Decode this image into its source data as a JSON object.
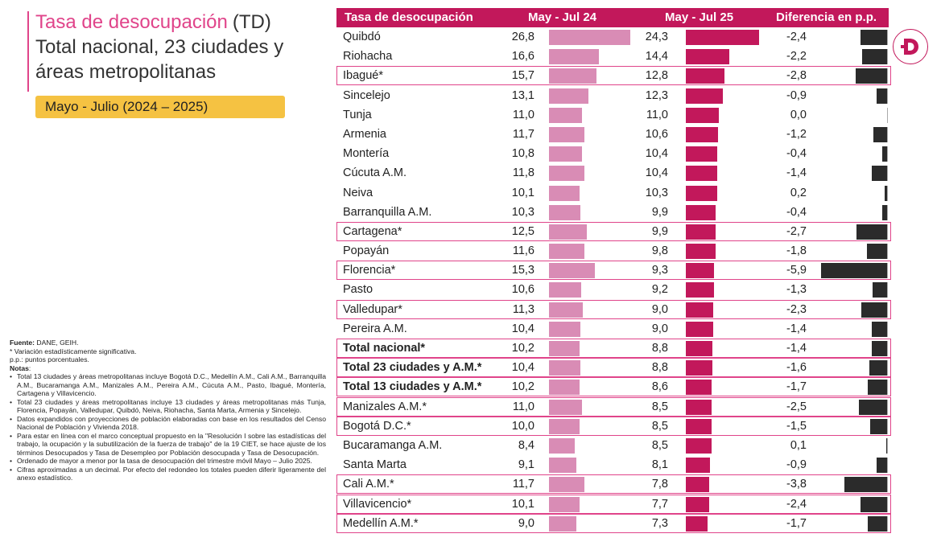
{
  "title": {
    "main": "Tasa de desocupación",
    "abbr": "(TD)",
    "line2": "Total nacional, 23 ciudades y áreas metropolitanas"
  },
  "period": "Mayo - Julio (2024 – 2025)",
  "colors": {
    "accent": "#e0448a",
    "header": "#c2185b",
    "bar2024": "#d98cb5",
    "bar2025": "#c2185b",
    "bardiff": "#2b2b2b",
    "period_bg": "#f5c242"
  },
  "notes": {
    "fuente_label": "Fuente:",
    "fuente": " DANE, GEIH.",
    "line1": "* Variación estadísticamente significativa.",
    "line2": "p.p.: puntos porcentuales.",
    "notas_label": "Notas",
    "notas_colon": ":",
    "items": [
      "Total 13 ciudades y áreas metropolitanas incluye Bogotá D.C., Medellín A.M., Cali A.M., Barranquilla A.M., Bucaramanga A.M., Manizales A.M., Pereira A.M., Cúcuta A.M., Pasto, Ibagué, Montería, Cartagena y Villavicencio.",
      "Total 23 ciudades y áreas metropolitanas incluye 13 ciudades y áreas metropolitanas más Tunja, Florencia, Popayán, Valledupar, Quibdó, Neiva, Riohacha, Santa Marta, Armenia y Sincelejo.",
      "Datos expandidos con proyecciones de población elaboradas con base en los resultados del Censo Nacional de Población y Vivienda 2018.",
      "Para estar en línea con el marco conceptual propuesto en la \"Resolución I sobre las estadísticas del trabajo, la ocupación y la subutilización de la fuerza de trabajo\" de la 19 CIET, se hace ajuste de los términos Desocupados y Tasa de Desempleo por Población desocupada y Tasa de Desocupación.",
      "Ordenado de mayor a menor por la tasa de desocupación del trimestre móvil Mayo – Julio 2025.",
      "Cifras aproximadas a un decimal. Por efecto del redondeo los totales pueden diferir ligeramente del anexo estadístico."
    ]
  },
  "chart_data": {
    "type": "table",
    "columns": [
      "Tasa de desocupación",
      "May - Jul 24",
      "May - Jul 25",
      "Diferencia en p.p."
    ],
    "rows": [
      {
        "name": "Quibdó",
        "v2024": "26,8",
        "v2025": "24,3",
        "diff": "-2,4",
        "n2024": 26.8,
        "n2025": 24.3,
        "nd": -2.4,
        "bold": false,
        "highlight": false
      },
      {
        "name": "Riohacha",
        "v2024": "16,6",
        "v2025": "14,4",
        "diff": "-2,2",
        "n2024": 16.6,
        "n2025": 14.4,
        "nd": -2.2,
        "bold": false,
        "highlight": false
      },
      {
        "name": "Ibagué*",
        "v2024": "15,7",
        "v2025": "12,8",
        "diff": "-2,8",
        "n2024": 15.7,
        "n2025": 12.8,
        "nd": -2.8,
        "bold": false,
        "highlight": true
      },
      {
        "name": "Sincelejo",
        "v2024": "13,1",
        "v2025": "12,3",
        "diff": "-0,9",
        "n2024": 13.1,
        "n2025": 12.3,
        "nd": -0.9,
        "bold": false,
        "highlight": false
      },
      {
        "name": "Tunja",
        "v2024": "11,0",
        "v2025": "11,0",
        "diff": "0,0",
        "n2024": 11.0,
        "n2025": 11.0,
        "nd": 0.0,
        "bold": false,
        "highlight": false
      },
      {
        "name": "Armenia",
        "v2024": "11,7",
        "v2025": "10,6",
        "diff": "-1,2",
        "n2024": 11.7,
        "n2025": 10.6,
        "nd": -1.2,
        "bold": false,
        "highlight": false
      },
      {
        "name": "Montería",
        "v2024": "10,8",
        "v2025": "10,4",
        "diff": "-0,4",
        "n2024": 10.8,
        "n2025": 10.4,
        "nd": -0.4,
        "bold": false,
        "highlight": false
      },
      {
        "name": "Cúcuta A.M.",
        "v2024": "11,8",
        "v2025": "10,4",
        "diff": "-1,4",
        "n2024": 11.8,
        "n2025": 10.4,
        "nd": -1.4,
        "bold": false,
        "highlight": false
      },
      {
        "name": "Neiva",
        "v2024": "10,1",
        "v2025": "10,3",
        "diff": "0,2",
        "n2024": 10.1,
        "n2025": 10.3,
        "nd": 0.2,
        "bold": false,
        "highlight": false
      },
      {
        "name": "Barranquilla A.M.",
        "v2024": "10,3",
        "v2025": "9,9",
        "diff": "-0,4",
        "n2024": 10.3,
        "n2025": 9.9,
        "nd": -0.4,
        "bold": false,
        "highlight": false
      },
      {
        "name": "Cartagena*",
        "v2024": "12,5",
        "v2025": "9,9",
        "diff": "-2,7",
        "n2024": 12.5,
        "n2025": 9.9,
        "nd": -2.7,
        "bold": false,
        "highlight": true
      },
      {
        "name": "Popayán",
        "v2024": "11,6",
        "v2025": "9,8",
        "diff": "-1,8",
        "n2024": 11.6,
        "n2025": 9.8,
        "nd": -1.8,
        "bold": false,
        "highlight": false
      },
      {
        "name": "Florencia*",
        "v2024": "15,3",
        "v2025": "9,3",
        "diff": "-5,9",
        "n2024": 15.3,
        "n2025": 9.3,
        "nd": -5.9,
        "bold": false,
        "highlight": true
      },
      {
        "name": "Pasto",
        "v2024": "10,6",
        "v2025": "9,2",
        "diff": "-1,3",
        "n2024": 10.6,
        "n2025": 9.2,
        "nd": -1.3,
        "bold": false,
        "highlight": false
      },
      {
        "name": "Valledupar*",
        "v2024": "11,3",
        "v2025": "9,0",
        "diff": "-2,3",
        "n2024": 11.3,
        "n2025": 9.0,
        "nd": -2.3,
        "bold": false,
        "highlight": true
      },
      {
        "name": "Pereira A.M.",
        "v2024": "10,4",
        "v2025": "9,0",
        "diff": "-1,4",
        "n2024": 10.4,
        "n2025": 9.0,
        "nd": -1.4,
        "bold": false,
        "highlight": false
      },
      {
        "name": "Total nacional*",
        "v2024": "10,2",
        "v2025": "8,8",
        "diff": "-1,4",
        "n2024": 10.2,
        "n2025": 8.8,
        "nd": -1.4,
        "bold": true,
        "highlight": true
      },
      {
        "name": "Total 23 ciudades y A.M.*",
        "v2024": "10,4",
        "v2025": "8,8",
        "diff": "-1,6",
        "n2024": 10.4,
        "n2025": 8.8,
        "nd": -1.6,
        "bold": true,
        "highlight": true
      },
      {
        "name": "Total 13 ciudades y A.M.*",
        "v2024": "10,2",
        "v2025": "8,6",
        "diff": "-1,7",
        "n2024": 10.2,
        "n2025": 8.6,
        "nd": -1.7,
        "bold": true,
        "highlight": true
      },
      {
        "name": "Manizales A.M.*",
        "v2024": "11,0",
        "v2025": "8,5",
        "diff": "-2,5",
        "n2024": 11.0,
        "n2025": 8.5,
        "nd": -2.5,
        "bold": false,
        "highlight": true
      },
      {
        "name": "Bogotá D.C.*",
        "v2024": "10,0",
        "v2025": "8,5",
        "diff": "-1,5",
        "n2024": 10.0,
        "n2025": 8.5,
        "nd": -1.5,
        "bold": false,
        "highlight": true
      },
      {
        "name": "Bucaramanga A.M.",
        "v2024": "8,4",
        "v2025": "8,5",
        "diff": "0,1",
        "n2024": 8.4,
        "n2025": 8.5,
        "nd": 0.1,
        "bold": false,
        "highlight": false
      },
      {
        "name": "Santa Marta",
        "v2024": "9,1",
        "v2025": "8,1",
        "diff": "-0,9",
        "n2024": 9.1,
        "n2025": 8.1,
        "nd": -0.9,
        "bold": false,
        "highlight": false
      },
      {
        "name": "Cali A.M.*",
        "v2024": "11,7",
        "v2025": "7,8",
        "diff": "-3,8",
        "n2024": 11.7,
        "n2025": 7.8,
        "nd": -3.8,
        "bold": false,
        "highlight": true
      },
      {
        "name": "Villavicencio*",
        "v2024": "10,1",
        "v2025": "7,7",
        "diff": "-2,4",
        "n2024": 10.1,
        "n2025": 7.7,
        "nd": -2.4,
        "bold": false,
        "highlight": true
      },
      {
        "name": "Medellín A.M.*",
        "v2024": "9,0",
        "v2025": "7,3",
        "diff": "-1,7",
        "n2024": 9.0,
        "n2025": 7.3,
        "nd": -1.7,
        "bold": false,
        "highlight": true
      }
    ]
  }
}
